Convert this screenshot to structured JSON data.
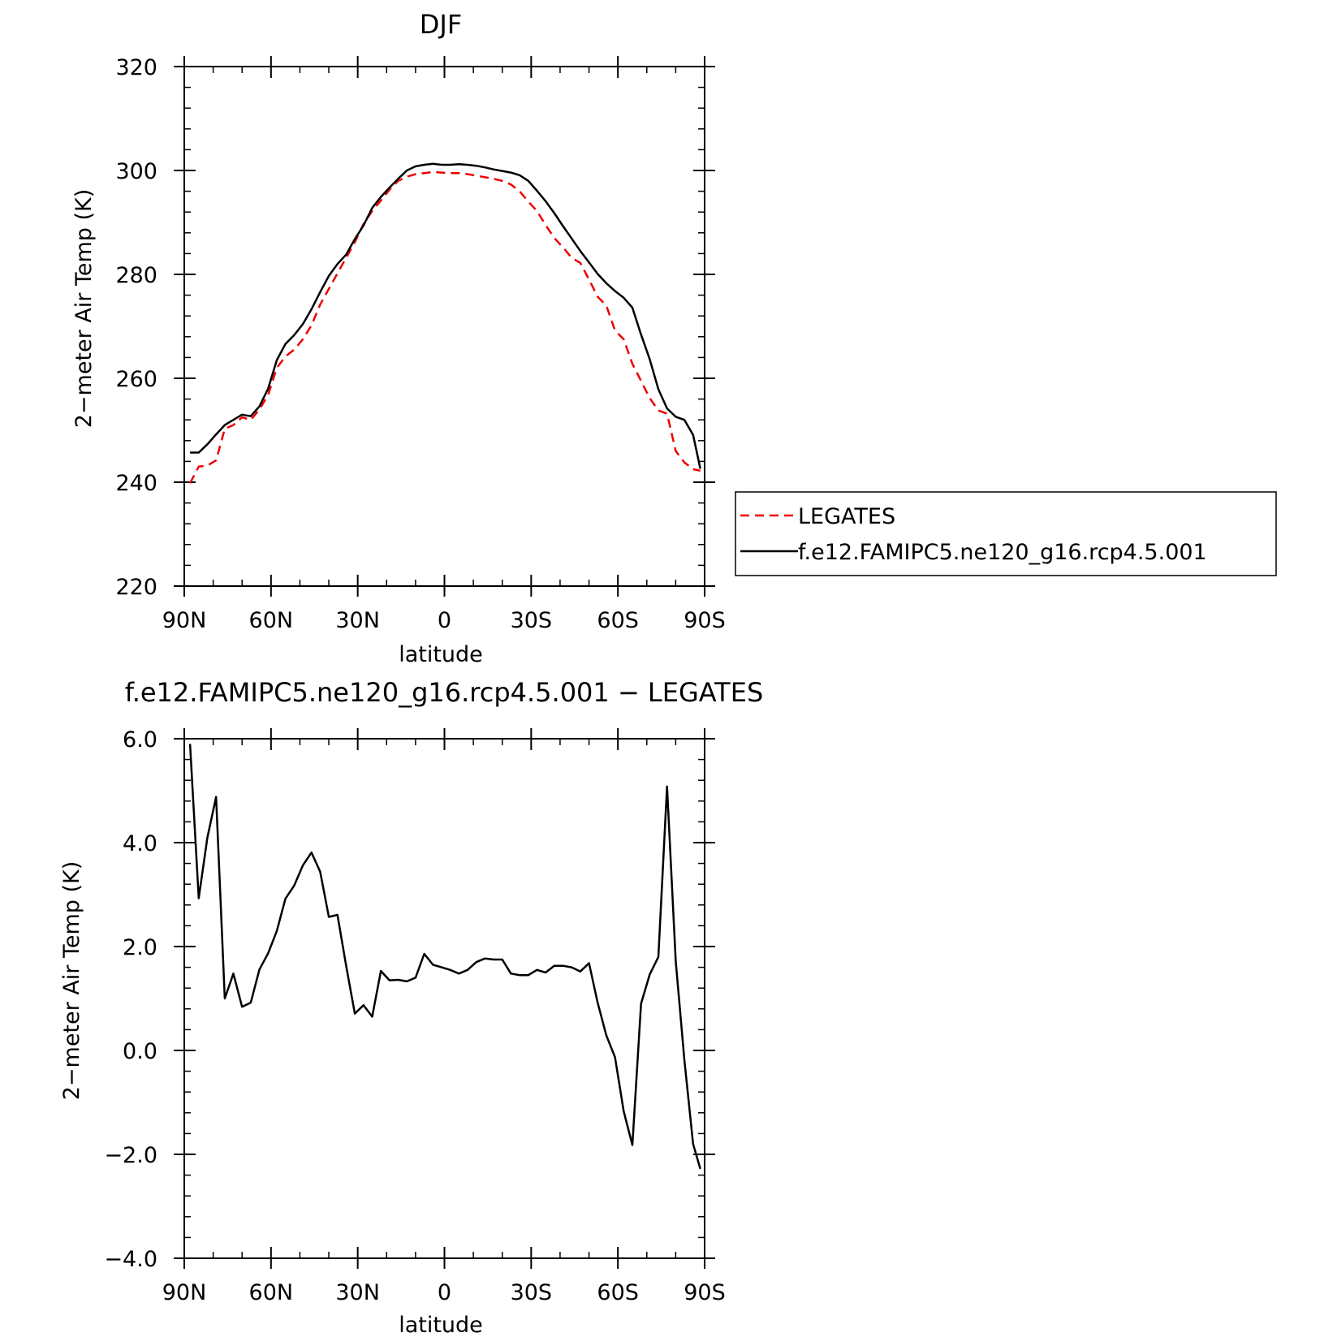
{
  "chart_data": [
    {
      "type": "line",
      "title": "DJF",
      "xlabel": "latitude",
      "ylabel": "2−meter Air Temp (K)",
      "xlim": [
        90,
        -90
      ],
      "ylim": [
        220,
        320
      ],
      "xticks": [
        90,
        60,
        30,
        0,
        -30,
        -60,
        -90
      ],
      "xtick_labels": [
        "90N",
        "60N",
        "30N",
        "0",
        "30S",
        "60S",
        "90S"
      ],
      "yticks": [
        220,
        240,
        260,
        280,
        300,
        320
      ],
      "ytick_labels": [
        "220",
        "240",
        "260",
        "280",
        "300",
        "320"
      ],
      "legend_position": "right",
      "series": [
        {
          "name": "LEGATES",
          "color": "#ee0000",
          "dash": "dashed",
          "x": [
            88,
            85,
            82,
            79,
            76,
            73,
            70,
            67,
            64,
            61,
            58,
            55,
            52,
            49,
            46,
            43,
            40,
            37,
            34,
            31,
            28,
            25,
            22,
            19,
            16,
            13,
            10,
            7,
            4,
            1,
            -2,
            -5,
            -8,
            -11,
            -14,
            -17,
            -20,
            -23,
            -26,
            -29,
            -32,
            -35,
            -38,
            -41,
            -44,
            -47,
            -50,
            -53,
            -56,
            -59,
            -62,
            -65,
            -68,
            -71,
            -74,
            -77,
            -80,
            -83,
            -86,
            -88.5
          ],
          "y": [
            239.8,
            243.0,
            243.2,
            244.2,
            250.3,
            251.0,
            252.5,
            252.0,
            254.0,
            256.8,
            262.0,
            264.2,
            265.5,
            267.5,
            270.2,
            274.2,
            277.2,
            280.2,
            283.2,
            286.2,
            289.7,
            292.2,
            294.2,
            296.3,
            298.0,
            298.8,
            299.3,
            299.5,
            299.7,
            299.6,
            299.5,
            299.5,
            299.3,
            299.0,
            298.7,
            298.4,
            298.0,
            297.3,
            296.0,
            294.0,
            292.2,
            289.5,
            287.0,
            285.2,
            283.2,
            282.2,
            279.0,
            275.7,
            274.0,
            269.2,
            267.5,
            262.8,
            259.5,
            256.2,
            253.8,
            253.2,
            246.0,
            243.8,
            242.5,
            242.2
          ]
        },
        {
          "name": "f.e12.FAMIPC5.ne120_g16.rcp4.5.001",
          "color": "#000000",
          "dash": "solid",
          "x": [
            88,
            85,
            82,
            79,
            76,
            73,
            70,
            67,
            64,
            61,
            58,
            55,
            52,
            49,
            46,
            43,
            40,
            37,
            34,
            31,
            28,
            25,
            22,
            19,
            16,
            13,
            10,
            7,
            4,
            1,
            -2,
            -5,
            -8,
            -11,
            -14,
            -17,
            -20,
            -23,
            -26,
            -29,
            -32,
            -35,
            -38,
            -41,
            -44,
            -47,
            -50,
            -53,
            -56,
            -59,
            -62,
            -65,
            -68,
            -71,
            -74,
            -77,
            -80,
            -83,
            -86,
            -88.5
          ],
          "y": [
            245.7,
            245.7,
            247.3,
            249.2,
            251.0,
            252.0,
            253.0,
            252.7,
            254.6,
            258.0,
            263.5,
            266.6,
            268.3,
            270.4,
            273.3,
            276.6,
            279.7,
            282.0,
            283.8,
            286.8,
            289.4,
            292.8,
            294.9,
            296.7,
            298.4,
            300.0,
            300.8,
            301.1,
            301.3,
            301.1,
            301.1,
            301.2,
            301.1,
            300.9,
            300.6,
            300.2,
            299.9,
            299.6,
            299.1,
            298.0,
            296.1,
            294.1,
            291.8,
            289.3,
            286.9,
            284.5,
            282.3,
            280.1,
            278.3,
            276.8,
            275.5,
            273.6,
            268.4,
            263.7,
            257.9,
            254.2,
            252.6,
            252.0,
            249.1,
            242.6
          ]
        }
      ]
    },
    {
      "type": "line",
      "title": "f.e12.FAMIPC5.ne120_g16.rcp4.5.001 − LEGATES",
      "xlabel": "latitude",
      "ylabel": "2−meter Air Temp (K)",
      "xlim": [
        90,
        -90
      ],
      "ylim": [
        -4,
        6
      ],
      "xticks": [
        90,
        60,
        30,
        0,
        -30,
        -60,
        -90
      ],
      "xtick_labels": [
        "90N",
        "60N",
        "30N",
        "0",
        "30S",
        "60S",
        "90S"
      ],
      "yticks": [
        -4,
        -2,
        0,
        2,
        4,
        6
      ],
      "ytick_labels": [
        "−4.0",
        "−2.0",
        "0.0",
        "2.0",
        "4.0",
        "6.0"
      ],
      "series": [
        {
          "color": "#000000",
          "dash": "solid",
          "x": [
            88,
            85,
            82,
            79,
            76,
            73,
            70,
            67,
            64,
            61,
            58,
            55,
            52,
            49,
            46,
            43,
            40,
            37,
            34,
            31,
            28,
            25,
            22,
            19,
            16,
            13,
            10,
            7,
            4,
            1,
            -2,
            -5,
            -8,
            -11,
            -14,
            -17,
            -20,
            -23,
            -26,
            -29,
            -32,
            -35,
            -38,
            -41,
            -44,
            -47,
            -50,
            -53,
            -56,
            -59,
            -62,
            -65,
            -68,
            -71,
            -74,
            -77,
            -80,
            -83,
            -86,
            -88.5
          ],
          "y": [
            5.9,
            2.93,
            4.1,
            4.88,
            1.0,
            1.48,
            0.84,
            0.92,
            1.56,
            1.87,
            2.3,
            2.92,
            3.17,
            3.56,
            3.81,
            3.44,
            2.57,
            2.61,
            1.63,
            0.71,
            0.87,
            0.65,
            1.53,
            1.35,
            1.36,
            1.33,
            1.4,
            1.86,
            1.65,
            1.6,
            1.55,
            1.48,
            1.55,
            1.7,
            1.77,
            1.75,
            1.75,
            1.48,
            1.45,
            1.45,
            1.55,
            1.5,
            1.63,
            1.63,
            1.6,
            1.52,
            1.68,
            0.92,
            0.29,
            -0.13,
            -1.17,
            -1.82,
            0.9,
            1.46,
            1.8,
            5.08,
            1.72,
            -0.19,
            -1.8,
            -2.28
          ]
        }
      ]
    }
  ]
}
